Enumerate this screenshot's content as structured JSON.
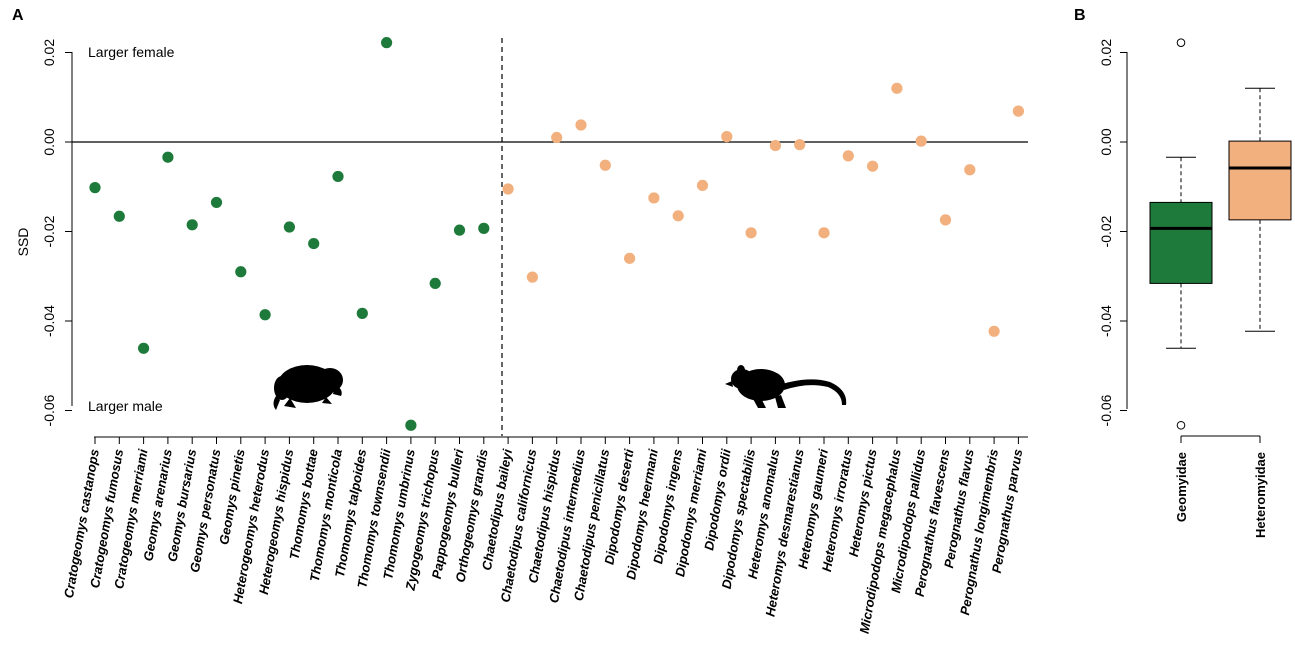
{
  "colors": {
    "geomyidae": "#1e7a3a",
    "heteromyidae": "#f2b07e",
    "axis": "#000000"
  },
  "chart_data": [
    {
      "panel": "A",
      "type": "scatter",
      "ylabel": "SSD",
      "ylim": [
        -0.063,
        0.024
      ],
      "yticks": [
        0.02,
        0.0,
        -0.02,
        -0.04,
        -0.06
      ],
      "ytick_labels": [
        "0.02",
        "0.00",
        "-0.02",
        "-0.04",
        "-0.06"
      ],
      "reference_line_y": 0,
      "annotations": [
        "Larger female",
        "Larger male"
      ],
      "groups": [
        {
          "family": "Geomyidae",
          "color_key": "geomyidae",
          "points": [
            {
              "species": "Cratogeomys castanops",
              "ssd": -0.0102
            },
            {
              "species": "Cratogeomys fumosus",
              "ssd": -0.0166
            },
            {
              "species": "Cratogeomys merriami",
              "ssd": -0.0461
            },
            {
              "species": "Geomys arenarius",
              "ssd": -0.0034
            },
            {
              "species": "Geomys bursarius",
              "ssd": -0.0185
            },
            {
              "species": "Geomys personatus",
              "ssd": -0.0135
            },
            {
              "species": "Geomys pinetis",
              "ssd": -0.029
            },
            {
              "species": "Heterogeomys heterodus",
              "ssd": -0.0386
            },
            {
              "species": "Heterogeomys hispidus",
              "ssd": -0.019
            },
            {
              "species": "Thomomys bottae",
              "ssd": -0.0227
            },
            {
              "species": "Thomomys monticola",
              "ssd": -0.0077
            },
            {
              "species": "Thomomys talpoides",
              "ssd": -0.0383
            },
            {
              "species": "Thomomys townsendii",
              "ssd": 0.0222
            },
            {
              "species": "Thomomys umbrinus",
              "ssd": -0.0633
            },
            {
              "species": "Zygogeomys trichopus",
              "ssd": -0.0316
            },
            {
              "species": "Pappogeomys bulleri",
              "ssd": -0.0197
            },
            {
              "species": "Orthogeomys grandis",
              "ssd": -0.0193
            }
          ]
        },
        {
          "family": "Heteromyidae",
          "color_key": "heteromyidae",
          "points": [
            {
              "species": "Chaetodipus baileyi",
              "ssd": -0.0105
            },
            {
              "species": "Chaetodipus californicus",
              "ssd": -0.0302
            },
            {
              "species": "Chaetodipus hispidus",
              "ssd": 0.001
            },
            {
              "species": "Chaetodipus intermedius",
              "ssd": 0.0038
            },
            {
              "species": "Chaetodipus penicillatus",
              "ssd": -0.0052
            },
            {
              "species": "Dipodomys deserti",
              "ssd": -0.026
            },
            {
              "species": "Dipodomys heermani",
              "ssd": -0.0125
            },
            {
              "species": "Dipodomys ingens",
              "ssd": -0.0165
            },
            {
              "species": "Dipodomys merriami",
              "ssd": -0.0097
            },
            {
              "species": "Dipodomys ordii",
              "ssd": 0.0012
            },
            {
              "species": "Dipodomys spectabilis",
              "ssd": -0.0203
            },
            {
              "species": "Heteromys anomalus",
              "ssd": -0.0008
            },
            {
              "species": "Heteromys desmarestianus",
              "ssd": -0.0006
            },
            {
              "species": "Heteromys gaumeri",
              "ssd": -0.0203
            },
            {
              "species": "Heteromys irroratus",
              "ssd": -0.0031
            },
            {
              "species": "Heteromys pictus",
              "ssd": -0.0054
            },
            {
              "species": "Microdipodops megacephalus",
              "ssd": 0.012
            },
            {
              "species": "Microdipodops pallidus",
              "ssd": 0.0002
            },
            {
              "species": "Perognathus flavescens",
              "ssd": -0.0174
            },
            {
              "species": "Perognathus flavus",
              "ssd": -0.0062
            },
            {
              "species": "Perognathus longimembris",
              "ssd": -0.0423
            },
            {
              "species": "Perognathus parvus",
              "ssd": 0.0069
            }
          ]
        }
      ]
    },
    {
      "panel": "B",
      "type": "box",
      "ylim": [
        -0.063,
        0.024
      ],
      "yticks": [
        0.02,
        0.0,
        -0.02,
        -0.04,
        -0.06
      ],
      "ytick_labels": [
        "0.02",
        "0.00",
        "-0.02",
        "-0.04",
        "-0.06"
      ],
      "categories": [
        "Geomyidae",
        "Heteromyidae"
      ],
      "boxes": [
        {
          "name": "Geomyidae",
          "color_key": "geomyidae",
          "whisker_low": -0.0461,
          "q1": -0.0316,
          "median": -0.0193,
          "q3": -0.0135,
          "whisker_high": -0.0034,
          "outliers": [
            0.0222,
            -0.0633
          ]
        },
        {
          "name": "Heteromyidae",
          "color_key": "heteromyidae",
          "whisker_low": -0.0423,
          "q1": -0.0174,
          "median": -0.0058,
          "q3": 0.0002,
          "whisker_high": 0.012,
          "outliers": []
        }
      ]
    }
  ]
}
